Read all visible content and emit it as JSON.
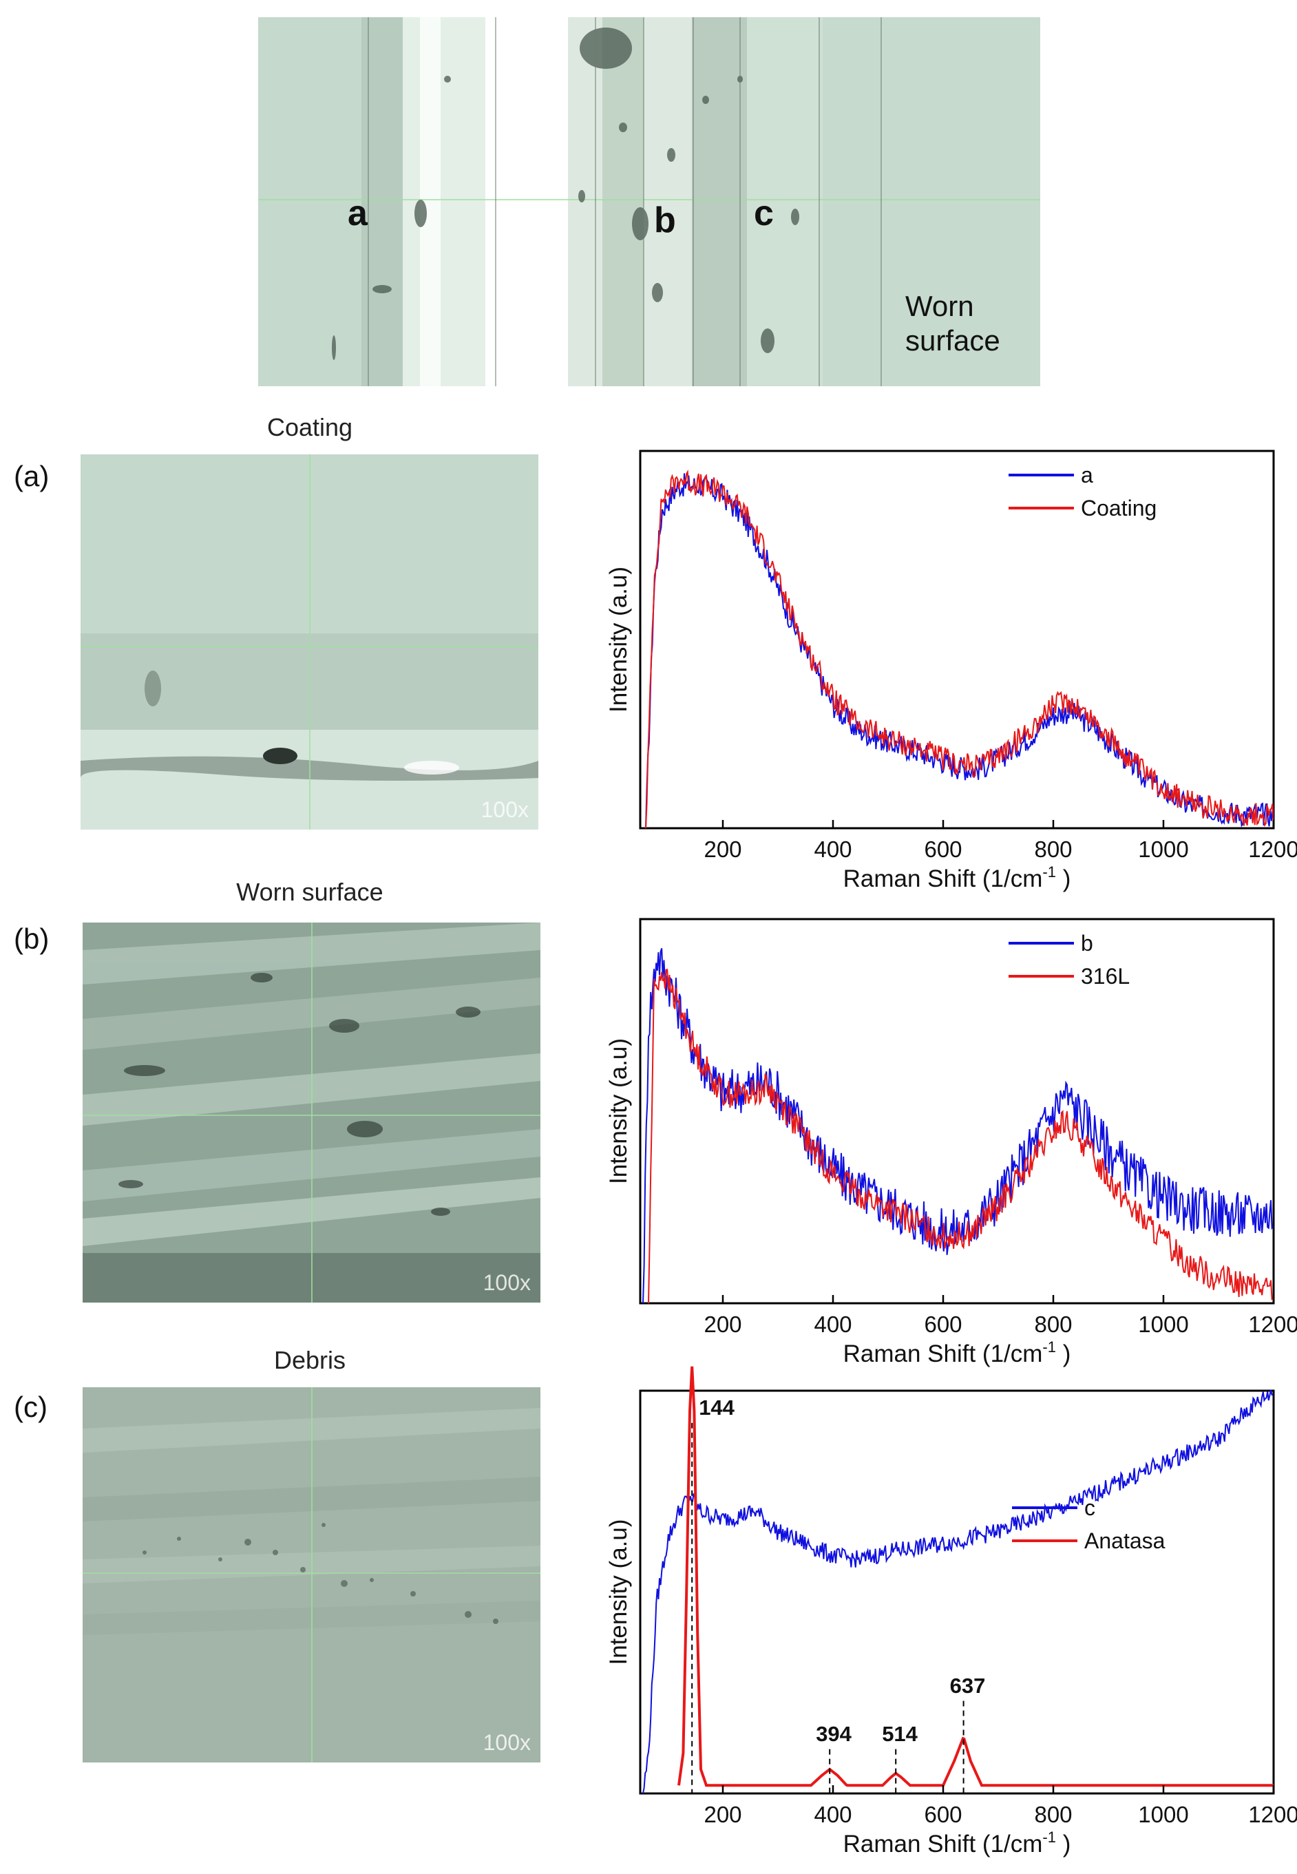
{
  "overview": {
    "point_labels": [
      "a",
      "b",
      "c"
    ],
    "region_label_line1": "Worn",
    "region_label_line2": "surface"
  },
  "panels": [
    {
      "label": "(a)",
      "title": "Coating",
      "magnification": "100x"
    },
    {
      "label": "(b)",
      "title": "Worn surface",
      "magnification": "100x"
    },
    {
      "label": "(c)",
      "title": "Debris",
      "magnification": "100x"
    }
  ],
  "colors": {
    "blue": "#1010e0",
    "red": "#e81818"
  },
  "chart_data": [
    {
      "type": "line",
      "xlabel": "Raman Shift (1/cm",
      "xlabel_sup": "-1",
      "xlabel_end": ")",
      "ylabel": "Intensity (a.u)",
      "xlim": [
        50,
        1200
      ],
      "xticks": [
        200,
        400,
        600,
        800,
        1000,
        1200
      ],
      "ylim": [
        0,
        1.1
      ],
      "legend": "top-right",
      "series": [
        {
          "name": "a",
          "color": "blue",
          "noise": 0.035,
          "points": [
            [
              60,
              0
            ],
            [
              75,
              0.7
            ],
            [
              90,
              0.93
            ],
            [
              120,
              1.0
            ],
            [
              160,
              1.0
            ],
            [
              200,
              0.97
            ],
            [
              240,
              0.9
            ],
            [
              280,
              0.78
            ],
            [
              320,
              0.62
            ],
            [
              360,
              0.48
            ],
            [
              400,
              0.36
            ],
            [
              440,
              0.29
            ],
            [
              500,
              0.25
            ],
            [
              560,
              0.22
            ],
            [
              620,
              0.18
            ],
            [
              660,
              0.17
            ],
            [
              700,
              0.2
            ],
            [
              760,
              0.27
            ],
            [
              800,
              0.33
            ],
            [
              830,
              0.34
            ],
            [
              870,
              0.3
            ],
            [
              920,
              0.22
            ],
            [
              980,
              0.13
            ],
            [
              1040,
              0.07
            ],
            [
              1100,
              0.05
            ],
            [
              1150,
              0.04
            ],
            [
              1200,
              0.04
            ]
          ]
        },
        {
          "name": "Coating",
          "color": "red",
          "noise": 0.035,
          "points": [
            [
              60,
              0
            ],
            [
              75,
              0.72
            ],
            [
              90,
              0.96
            ],
            [
              120,
              1.02
            ],
            [
              160,
              1.0
            ],
            [
              200,
              0.98
            ],
            [
              240,
              0.92
            ],
            [
              280,
              0.8
            ],
            [
              320,
              0.64
            ],
            [
              360,
              0.5
            ],
            [
              400,
              0.38
            ],
            [
              440,
              0.31
            ],
            [
              500,
              0.26
            ],
            [
              560,
              0.23
            ],
            [
              620,
              0.19
            ],
            [
              660,
              0.18
            ],
            [
              700,
              0.21
            ],
            [
              760,
              0.29
            ],
            [
              800,
              0.36
            ],
            [
              830,
              0.37
            ],
            [
              870,
              0.32
            ],
            [
              920,
              0.23
            ],
            [
              980,
              0.14
            ],
            [
              1040,
              0.08
            ],
            [
              1100,
              0.05
            ],
            [
              1150,
              0.04
            ],
            [
              1200,
              0.04
            ]
          ]
        }
      ]
    },
    {
      "type": "line",
      "xlabel": "Raman Shift (1/cm",
      "xlabel_sup": "-1",
      "xlabel_end": ")",
      "ylabel": "Intensity (a.u)",
      "xlim": [
        50,
        1200
      ],
      "xticks": [
        200,
        400,
        600,
        800,
        1000,
        1200
      ],
      "ylim": [
        0,
        1.1
      ],
      "legend": "top-right",
      "series": [
        {
          "name": "b",
          "color": "blue",
          "noise": 0.07,
          "points": [
            [
              55,
              0
            ],
            [
              65,
              0.8
            ],
            [
              80,
              1.0
            ],
            [
              100,
              0.93
            ],
            [
              150,
              0.72
            ],
            [
              200,
              0.6
            ],
            [
              250,
              0.62
            ],
            [
              280,
              0.64
            ],
            [
              320,
              0.56
            ],
            [
              360,
              0.46
            ],
            [
              400,
              0.38
            ],
            [
              450,
              0.32
            ],
            [
              500,
              0.28
            ],
            [
              550,
              0.24
            ],
            [
              600,
              0.2
            ],
            [
              650,
              0.22
            ],
            [
              700,
              0.3
            ],
            [
              750,
              0.42
            ],
            [
              800,
              0.55
            ],
            [
              820,
              0.6
            ],
            [
              850,
              0.54
            ],
            [
              900,
              0.44
            ],
            [
              950,
              0.36
            ],
            [
              1000,
              0.3
            ],
            [
              1050,
              0.27
            ],
            [
              1100,
              0.26
            ],
            [
              1150,
              0.25
            ],
            [
              1200,
              0.26
            ]
          ]
        },
        {
          "name": "316L",
          "color": "red",
          "noise": 0.04,
          "points": [
            [
              65,
              0
            ],
            [
              75,
              0.9
            ],
            [
              90,
              0.95
            ],
            [
              120,
              0.85
            ],
            [
              150,
              0.72
            ],
            [
              200,
              0.6
            ],
            [
              250,
              0.6
            ],
            [
              280,
              0.62
            ],
            [
              320,
              0.54
            ],
            [
              360,
              0.45
            ],
            [
              400,
              0.37
            ],
            [
              450,
              0.31
            ],
            [
              500,
              0.27
            ],
            [
              550,
              0.23
            ],
            [
              600,
              0.19
            ],
            [
              650,
              0.2
            ],
            [
              700,
              0.28
            ],
            [
              750,
              0.38
            ],
            [
              800,
              0.49
            ],
            [
              820,
              0.52
            ],
            [
              850,
              0.47
            ],
            [
              900,
              0.36
            ],
            [
              950,
              0.26
            ],
            [
              1000,
              0.18
            ],
            [
              1050,
              0.11
            ],
            [
              1100,
              0.07
            ],
            [
              1150,
              0.05
            ],
            [
              1200,
              0.04
            ]
          ]
        }
      ]
    },
    {
      "type": "line",
      "xlabel": "Raman Shift (1/cm",
      "xlabel_sup": "-1",
      "xlabel_end": ")",
      "ylabel": "Intensity (a.u)",
      "xlim": [
        50,
        1200
      ],
      "xticks": [
        200,
        400,
        600,
        800,
        1000,
        1200
      ],
      "ylim": [
        0,
        1.0
      ],
      "legend": "right",
      "series": [
        {
          "name": "c",
          "color": "blue",
          "noise": 0.022,
          "points": [
            [
              55,
              0
            ],
            [
              65,
              0.1
            ],
            [
              80,
              0.48
            ],
            [
              100,
              0.63
            ],
            [
              120,
              0.7
            ],
            [
              140,
              0.74
            ],
            [
              160,
              0.7
            ],
            [
              200,
              0.68
            ],
            [
              260,
              0.7
            ],
            [
              300,
              0.65
            ],
            [
              350,
              0.62
            ],
            [
              400,
              0.59
            ],
            [
              450,
              0.58
            ],
            [
              500,
              0.6
            ],
            [
              600,
              0.62
            ],
            [
              700,
              0.65
            ],
            [
              800,
              0.7
            ],
            [
              900,
              0.76
            ],
            [
              1000,
              0.82
            ],
            [
              1050,
              0.85
            ],
            [
              1100,
              0.88
            ],
            [
              1150,
              0.95
            ],
            [
              1200,
              1.0
            ]
          ]
        },
        {
          "name": "Anatasa",
          "color": "red",
          "noise": 0.0,
          "points": [
            [
              120,
              0.02
            ],
            [
              128,
              0.1
            ],
            [
              134,
              0.5
            ],
            [
              140,
              0.95
            ],
            [
              144,
              1.06
            ],
            [
              148,
              0.95
            ],
            [
              154,
              0.4
            ],
            [
              160,
              0.06
            ],
            [
              170,
              0.02
            ],
            [
              360,
              0.02
            ],
            [
              380,
              0.045
            ],
            [
              394,
              0.06
            ],
            [
              408,
              0.045
            ],
            [
              425,
              0.02
            ],
            [
              490,
              0.02
            ],
            [
              505,
              0.04
            ],
            [
              514,
              0.05
            ],
            [
              524,
              0.04
            ],
            [
              540,
              0.02
            ],
            [
              600,
              0.02
            ],
            [
              620,
              0.08
            ],
            [
              637,
              0.14
            ],
            [
              650,
              0.08
            ],
            [
              670,
              0.02
            ],
            [
              1200,
              0.02
            ]
          ]
        }
      ],
      "peak_annotations": [
        {
          "x": 144,
          "label": "144",
          "y_label": 0.94,
          "y_line_top": 0.92,
          "y_line_bottom": 0.0
        },
        {
          "x": 394,
          "label": "394",
          "y_label": 0.13,
          "y_line_top": 0.11,
          "y_line_bottom": 0.0
        },
        {
          "x": 514,
          "label": "514",
          "y_label": 0.13,
          "y_line_top": 0.11,
          "y_line_bottom": 0.0
        },
        {
          "x": 637,
          "label": "637",
          "y_label": 0.25,
          "y_line_top": 0.23,
          "y_line_bottom": 0.0
        }
      ]
    }
  ]
}
